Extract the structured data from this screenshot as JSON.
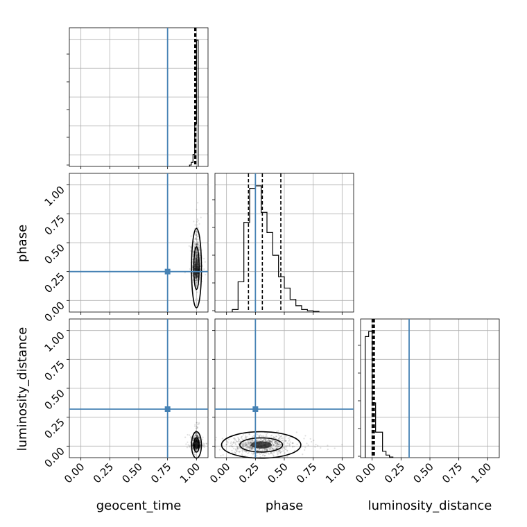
{
  "chart_data": {
    "type": "scatter",
    "kind": "corner-plot",
    "parameters": [
      "geocent_time",
      "phase",
      "luminosity_distance"
    ],
    "axis_range": [
      -0.1,
      1.1
    ],
    "ticks": [
      0.0,
      0.25,
      0.5,
      0.75,
      1.0
    ],
    "tick_labels": [
      "0.00",
      "0.25",
      "0.50",
      "0.75",
      "1.00"
    ],
    "grid": true,
    "colors": {
      "truth": "#4682b4",
      "hist": "#000000",
      "points": "#000000"
    },
    "truths": {
      "geocent_time": 0.75,
      "phase": 0.25,
      "luminosity_distance": 0.32
    },
    "histograms": {
      "geocent_time": {
        "bins": [
          0.94,
          0.955,
          0.97,
          0.985,
          1.0,
          1.015
        ],
        "counts": [
          0.01,
          0.03,
          0.09,
          0.32,
          0.95
        ],
        "quantiles": [
          0.985,
          0.99,
          0.995
        ]
      },
      "phase": {
        "bins": [
          0.05,
          0.1,
          0.15,
          0.2,
          0.25,
          0.3,
          0.35,
          0.4,
          0.45,
          0.5,
          0.55,
          0.6,
          0.65,
          0.7,
          0.75,
          0.8
        ],
        "counts": [
          0.02,
          0.24,
          0.71,
          0.98,
          1.0,
          0.79,
          0.63,
          0.45,
          0.28,
          0.19,
          0.1,
          0.05,
          0.02,
          0.01,
          0.005
        ],
        "quantiles": [
          0.19,
          0.31,
          0.47
        ]
      },
      "luminosity_distance": {
        "bins": [
          -0.06,
          -0.03,
          0.0,
          0.03,
          0.06,
          0.09,
          0.12,
          0.15,
          0.18
        ],
        "counts": [
          0.95,
          0.99,
          0.43,
          0.2,
          0.2,
          0.05,
          0.02,
          0.005
        ],
        "quantiles": [
          0.0,
          0.01,
          0.02
        ]
      }
    },
    "scatter_2d": {
      "phase_vs_geocent_time": {
        "center": [
          1.0,
          0.28
        ],
        "spread": [
          0.015,
          0.12
        ]
      },
      "luminosity_distance_vs_geocent_time": {
        "center": [
          1.0,
          0.01
        ],
        "spread": [
          0.015,
          0.04
        ]
      },
      "luminosity_distance_vs_phase": {
        "center": [
          0.3,
          0.01
        ],
        "spread": [
          0.12,
          0.04
        ]
      }
    }
  }
}
